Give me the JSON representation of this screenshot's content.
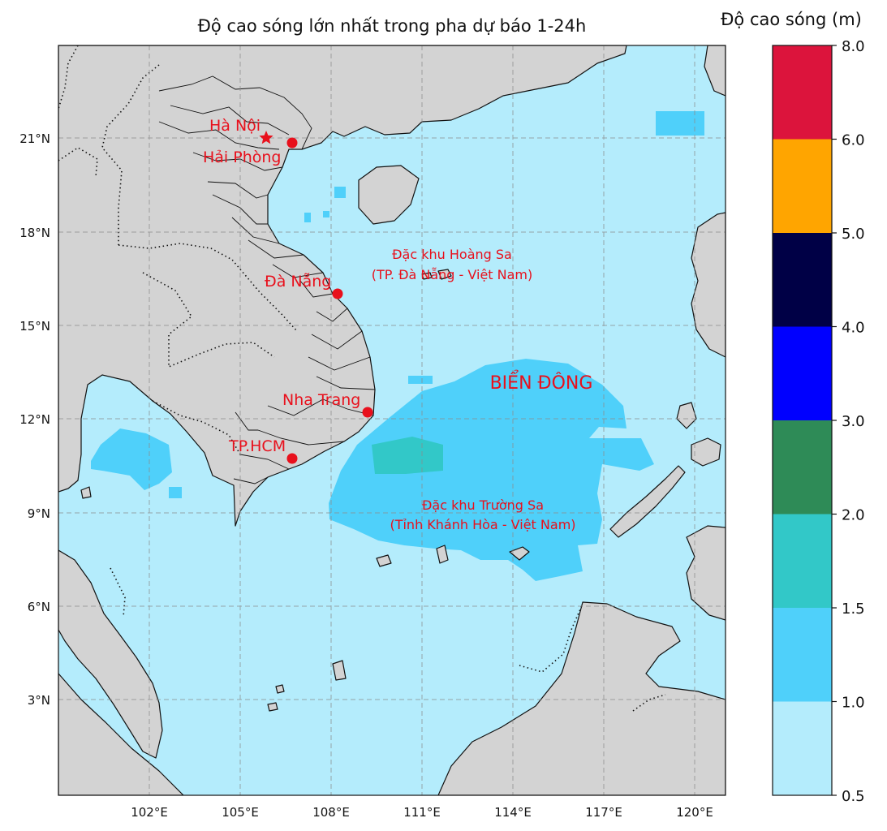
{
  "title": "Độ cao sóng lớn nhất trong pha dự báo 1-24h",
  "colorbar": {
    "title": "Độ cao sóng (m)",
    "ticks": [
      "0.5",
      "1.0",
      "1.5",
      "2.0",
      "3.0",
      "4.0",
      "5.0",
      "6.0",
      "8.0"
    ],
    "colors": [
      "#b4ecfc",
      "#4fd0fa",
      "#32c8c8",
      "#2e8b57",
      "#0000ff",
      "#000046",
      "#ffa500",
      "#dc143c"
    ]
  },
  "axes": {
    "lon_ticks": [
      "102°E",
      "105°E",
      "108°E",
      "111°E",
      "114°E",
      "117°E",
      "120°E"
    ],
    "lat_ticks": [
      "3°N",
      "6°N",
      "9°N",
      "12°N",
      "15°N",
      "18°N",
      "21°N"
    ]
  },
  "colors": {
    "land": "#d3d3d3",
    "sea_base": "#b4ecfc",
    "wave_1_1_5": "#4fd0fa",
    "wave_1_5_2": "#32c8c8",
    "markers": "#e8101c"
  },
  "cities": {
    "hanoi": "Hà Nội",
    "haiphong": "Hải Phòng",
    "danang": "Đà Nẵng",
    "nhatrang": "Nha Trang",
    "hcm": "TP.HCM"
  },
  "regions": {
    "bien_dong": "BIỂN ĐÔNG",
    "hoang_sa_1": "Đặc khu Hoàng Sa",
    "hoang_sa_2": "(TP. Đà Nẵng - Việt Nam)",
    "truong_sa_1": "Đặc khu Trường Sa",
    "truong_sa_2": "(Tỉnh Khánh Hòa - Việt Nam)"
  }
}
